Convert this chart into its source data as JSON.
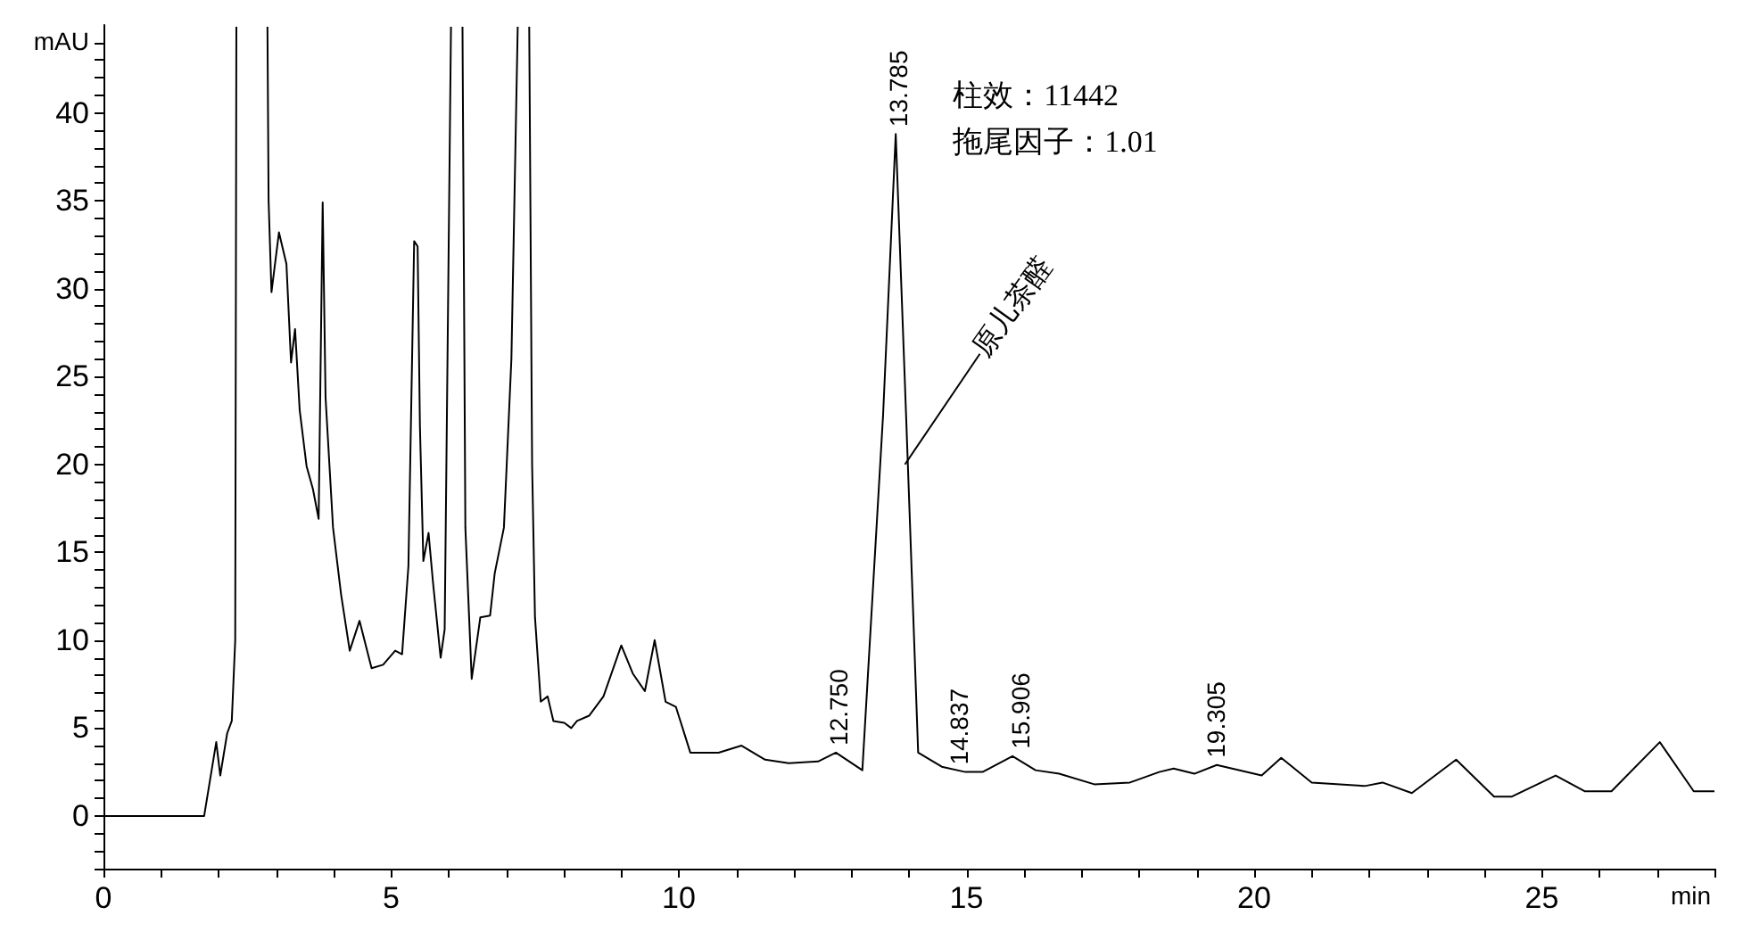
{
  "chart_data": {
    "type": "line",
    "xlabel": "min",
    "ylabel": "mAU",
    "xlim": [
      0,
      28
    ],
    "ylim": [
      -3,
      45
    ],
    "xticks": [
      0,
      {
        "value": 1,
        "label": null
      },
      {
        "value": 2,
        "label": null
      },
      {
        "value": 3,
        "label": null
      },
      {
        "value": 4,
        "label": null
      },
      5,
      {
        "value": 6,
        "label": null
      },
      {
        "value": 7,
        "label": null
      },
      {
        "value": 8,
        "label": null
      },
      {
        "value": 9,
        "label": null
      },
      10,
      {
        "value": 11,
        "label": null
      },
      {
        "value": 12,
        "label": null
      },
      {
        "value": 13,
        "label": null
      },
      {
        "value": 14,
        "label": null
      },
      15,
      {
        "value": 16,
        "label": null
      },
      {
        "value": 17,
        "label": null
      },
      {
        "value": 18,
        "label": null
      },
      {
        "value": 19,
        "label": null
      },
      20,
      {
        "value": 21,
        "label": null
      },
      {
        "value": 22,
        "label": null
      },
      {
        "value": 23,
        "label": null
      },
      {
        "value": 24,
        "label": null
      },
      25,
      {
        "value": 26,
        "label": null
      },
      {
        "value": 27,
        "label": null
      },
      {
        "value": 28,
        "label": null
      }
    ],
    "yticks": [
      {
        "value": -3,
        "label": null
      },
      {
        "value": -2,
        "label": null
      },
      {
        "value": -1,
        "label": null
      },
      0,
      {
        "value": 1,
        "label": null
      },
      {
        "value": 2,
        "label": null
      },
      {
        "value": 3,
        "label": null
      },
      {
        "value": 4,
        "label": null
      },
      5,
      {
        "value": 6,
        "label": null
      },
      {
        "value": 7,
        "label": null
      },
      {
        "value": 8,
        "label": null
      },
      {
        "value": 9,
        "label": null
      },
      10,
      {
        "value": 11,
        "label": null
      },
      {
        "value": 12,
        "label": null
      },
      {
        "value": 13,
        "label": null
      },
      {
        "value": 14,
        "label": null
      },
      15,
      {
        "value": 16,
        "label": null
      },
      {
        "value": 17,
        "label": null
      },
      {
        "value": 18,
        "label": null
      },
      {
        "value": 19,
        "label": null
      },
      20,
      {
        "value": 21,
        "label": null
      },
      {
        "value": 22,
        "label": null
      },
      {
        "value": 23,
        "label": null
      },
      {
        "value": 24,
        "label": null
      },
      25,
      {
        "value": 26,
        "label": null
      },
      {
        "value": 27,
        "label": null
      },
      {
        "value": 28,
        "label": null
      },
      {
        "value": 29,
        "label": null
      },
      30,
      {
        "value": 31,
        "label": null
      },
      {
        "value": 32,
        "label": null
      },
      {
        "value": 33,
        "label": null
      },
      {
        "value": 34,
        "label": null
      },
      35,
      {
        "value": 36,
        "label": null
      },
      {
        "value": 37,
        "label": null
      },
      {
        "value": 38,
        "label": null
      },
      {
        "value": 39,
        "label": null
      },
      40,
      {
        "value": 41,
        "label": null
      },
      {
        "value": 42,
        "label": null
      },
      {
        "value": 43,
        "label": null
      },
      {
        "value": 44,
        "label": null
      }
    ],
    "grid": false,
    "marker": "none",
    "line_style": "solid",
    "series": [
      {
        "color": "#000000",
        "x": [
          0,
          1.75,
          1.96,
          2.03,
          2.15,
          2.23,
          2.29,
          2.31,
          2.5,
          2.85,
          2.87,
          2.92,
          3.05,
          3.18,
          3.26,
          3.33,
          3.41,
          3.53,
          3.64,
          3.74,
          3.81,
          3.86,
          3.99,
          4.13,
          4.28,
          4.45,
          4.66,
          4.86,
          5.07,
          5.19,
          5.3,
          5.4,
          5.46,
          5.5,
          5.56,
          5.65,
          5.73,
          5.86,
          5.93,
          6.04,
          6.14,
          6.24,
          6.29,
          6.4,
          6.55,
          6.72,
          6.8,
          6.96,
          7.09,
          7.2,
          7.3,
          7.4,
          7.45,
          7.5,
          7.6,
          7.72,
          7.82,
          8.01,
          8.13,
          8.23,
          8.44,
          8.69,
          9.0,
          9.2,
          9.41,
          9.58,
          9.77,
          9.95,
          10.2,
          10.69,
          11.09,
          11.5,
          11.91,
          12.42,
          12.73,
          13.19,
          13.55,
          13.77,
          13.95,
          14.16,
          14.57,
          14.98,
          15.28,
          15.8,
          16.2,
          16.61,
          17.22,
          17.84,
          18.35,
          18.6,
          18.96,
          19.35,
          20.13,
          20.47,
          21.0,
          21.92,
          22.23,
          22.74,
          23.51,
          24.17,
          24.48,
          25.24,
          25.75,
          26.21,
          27.05,
          27.64,
          28.0
        ],
        "values": [
          0,
          0,
          4.2,
          2.3,
          4.7,
          5.4,
          10,
          44.9,
          null,
          44.9,
          35,
          29.8,
          33.2,
          31.4,
          25.8,
          27.7,
          23.1,
          19.9,
          18.6,
          16.9,
          34.9,
          23.8,
          16.4,
          12.6,
          9.4,
          11.1,
          8.4,
          8.6,
          9.4,
          9.2,
          14.2,
          32.7,
          32.4,
          22.2,
          14.5,
          16.1,
          13.2,
          9.0,
          10.6,
          44.9,
          null,
          44.9,
          16.4,
          7.8,
          11.3,
          11.4,
          13.8,
          16.4,
          26,
          44.9,
          null,
          44.9,
          20,
          11.3,
          6.5,
          6.8,
          5.4,
          5.3,
          5.0,
          5.4,
          5.7,
          6.8,
          9.7,
          8.1,
          7.1,
          10.0,
          6.5,
          6.2,
          3.6,
          3.6,
          4.0,
          3.2,
          3.0,
          3.1,
          3.6,
          2.6,
          22.8,
          38.8,
          22.8,
          3.6,
          2.8,
          2.5,
          2.5,
          3.4,
          2.6,
          2.4,
          1.8,
          1.9,
          2.5,
          2.7,
          2.4,
          2.9,
          2.3,
          3.3,
          1.9,
          1.7,
          1.9,
          1.3,
          3.2,
          1.1,
          1.1,
          2.3,
          1.4,
          1.4,
          4.2,
          1.4,
          1.4
        ]
      }
    ],
    "annotations": [
      {
        "text": "12.750",
        "x": 12.75,
        "y": 3.6
      },
      {
        "text": "13.785",
        "x": 13.785,
        "y": 38.8
      },
      {
        "text": "14.837",
        "x": 14.837,
        "y": 2.5
      },
      {
        "text": "15.906",
        "x": 15.906,
        "y": 3.4
      },
      {
        "text": "19.305",
        "x": 19.305,
        "y": 2.9
      },
      "柱效：11442",
      "拖尾因子：1.01",
      {
        "text": "原儿茶醛",
        "x": 13.93,
        "y": 20
      }
    ]
  }
}
